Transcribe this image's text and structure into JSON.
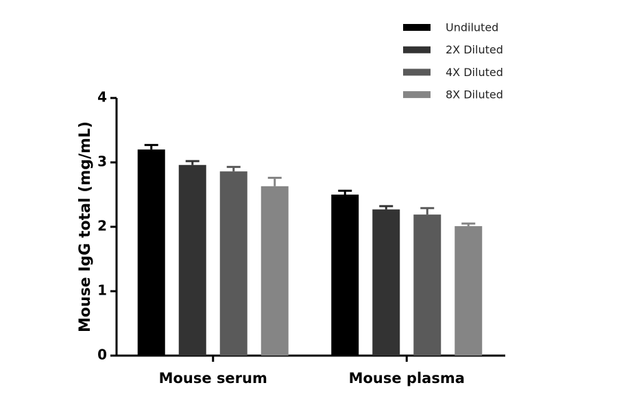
{
  "chart_data": {
    "type": "bar",
    "y_label": "Mouse IgG total (mg/mL)",
    "categories": [
      "Mouse serum",
      "Mouse plasma"
    ],
    "series": [
      {
        "name": "Undiluted",
        "color": "#000000",
        "values": [
          3.2,
          2.5
        ],
        "errors": [
          0.07,
          0.06
        ]
      },
      {
        "name": "2X Diluted",
        "color": "#333333",
        "values": [
          2.96,
          2.27
        ],
        "errors": [
          0.06,
          0.05
        ]
      },
      {
        "name": "4X Diluted",
        "color": "#5a5a5a",
        "values": [
          2.86,
          2.19
        ],
        "errors": [
          0.07,
          0.1
        ]
      },
      {
        "name": "8X Diluted",
        "color": "#858585",
        "values": [
          2.63,
          2.01
        ],
        "errors": [
          0.13,
          0.04
        ]
      }
    ],
    "ylim": [
      0,
      4
    ],
    "yticks": [
      0,
      1,
      2,
      3,
      4
    ],
    "legend": "top-right"
  }
}
